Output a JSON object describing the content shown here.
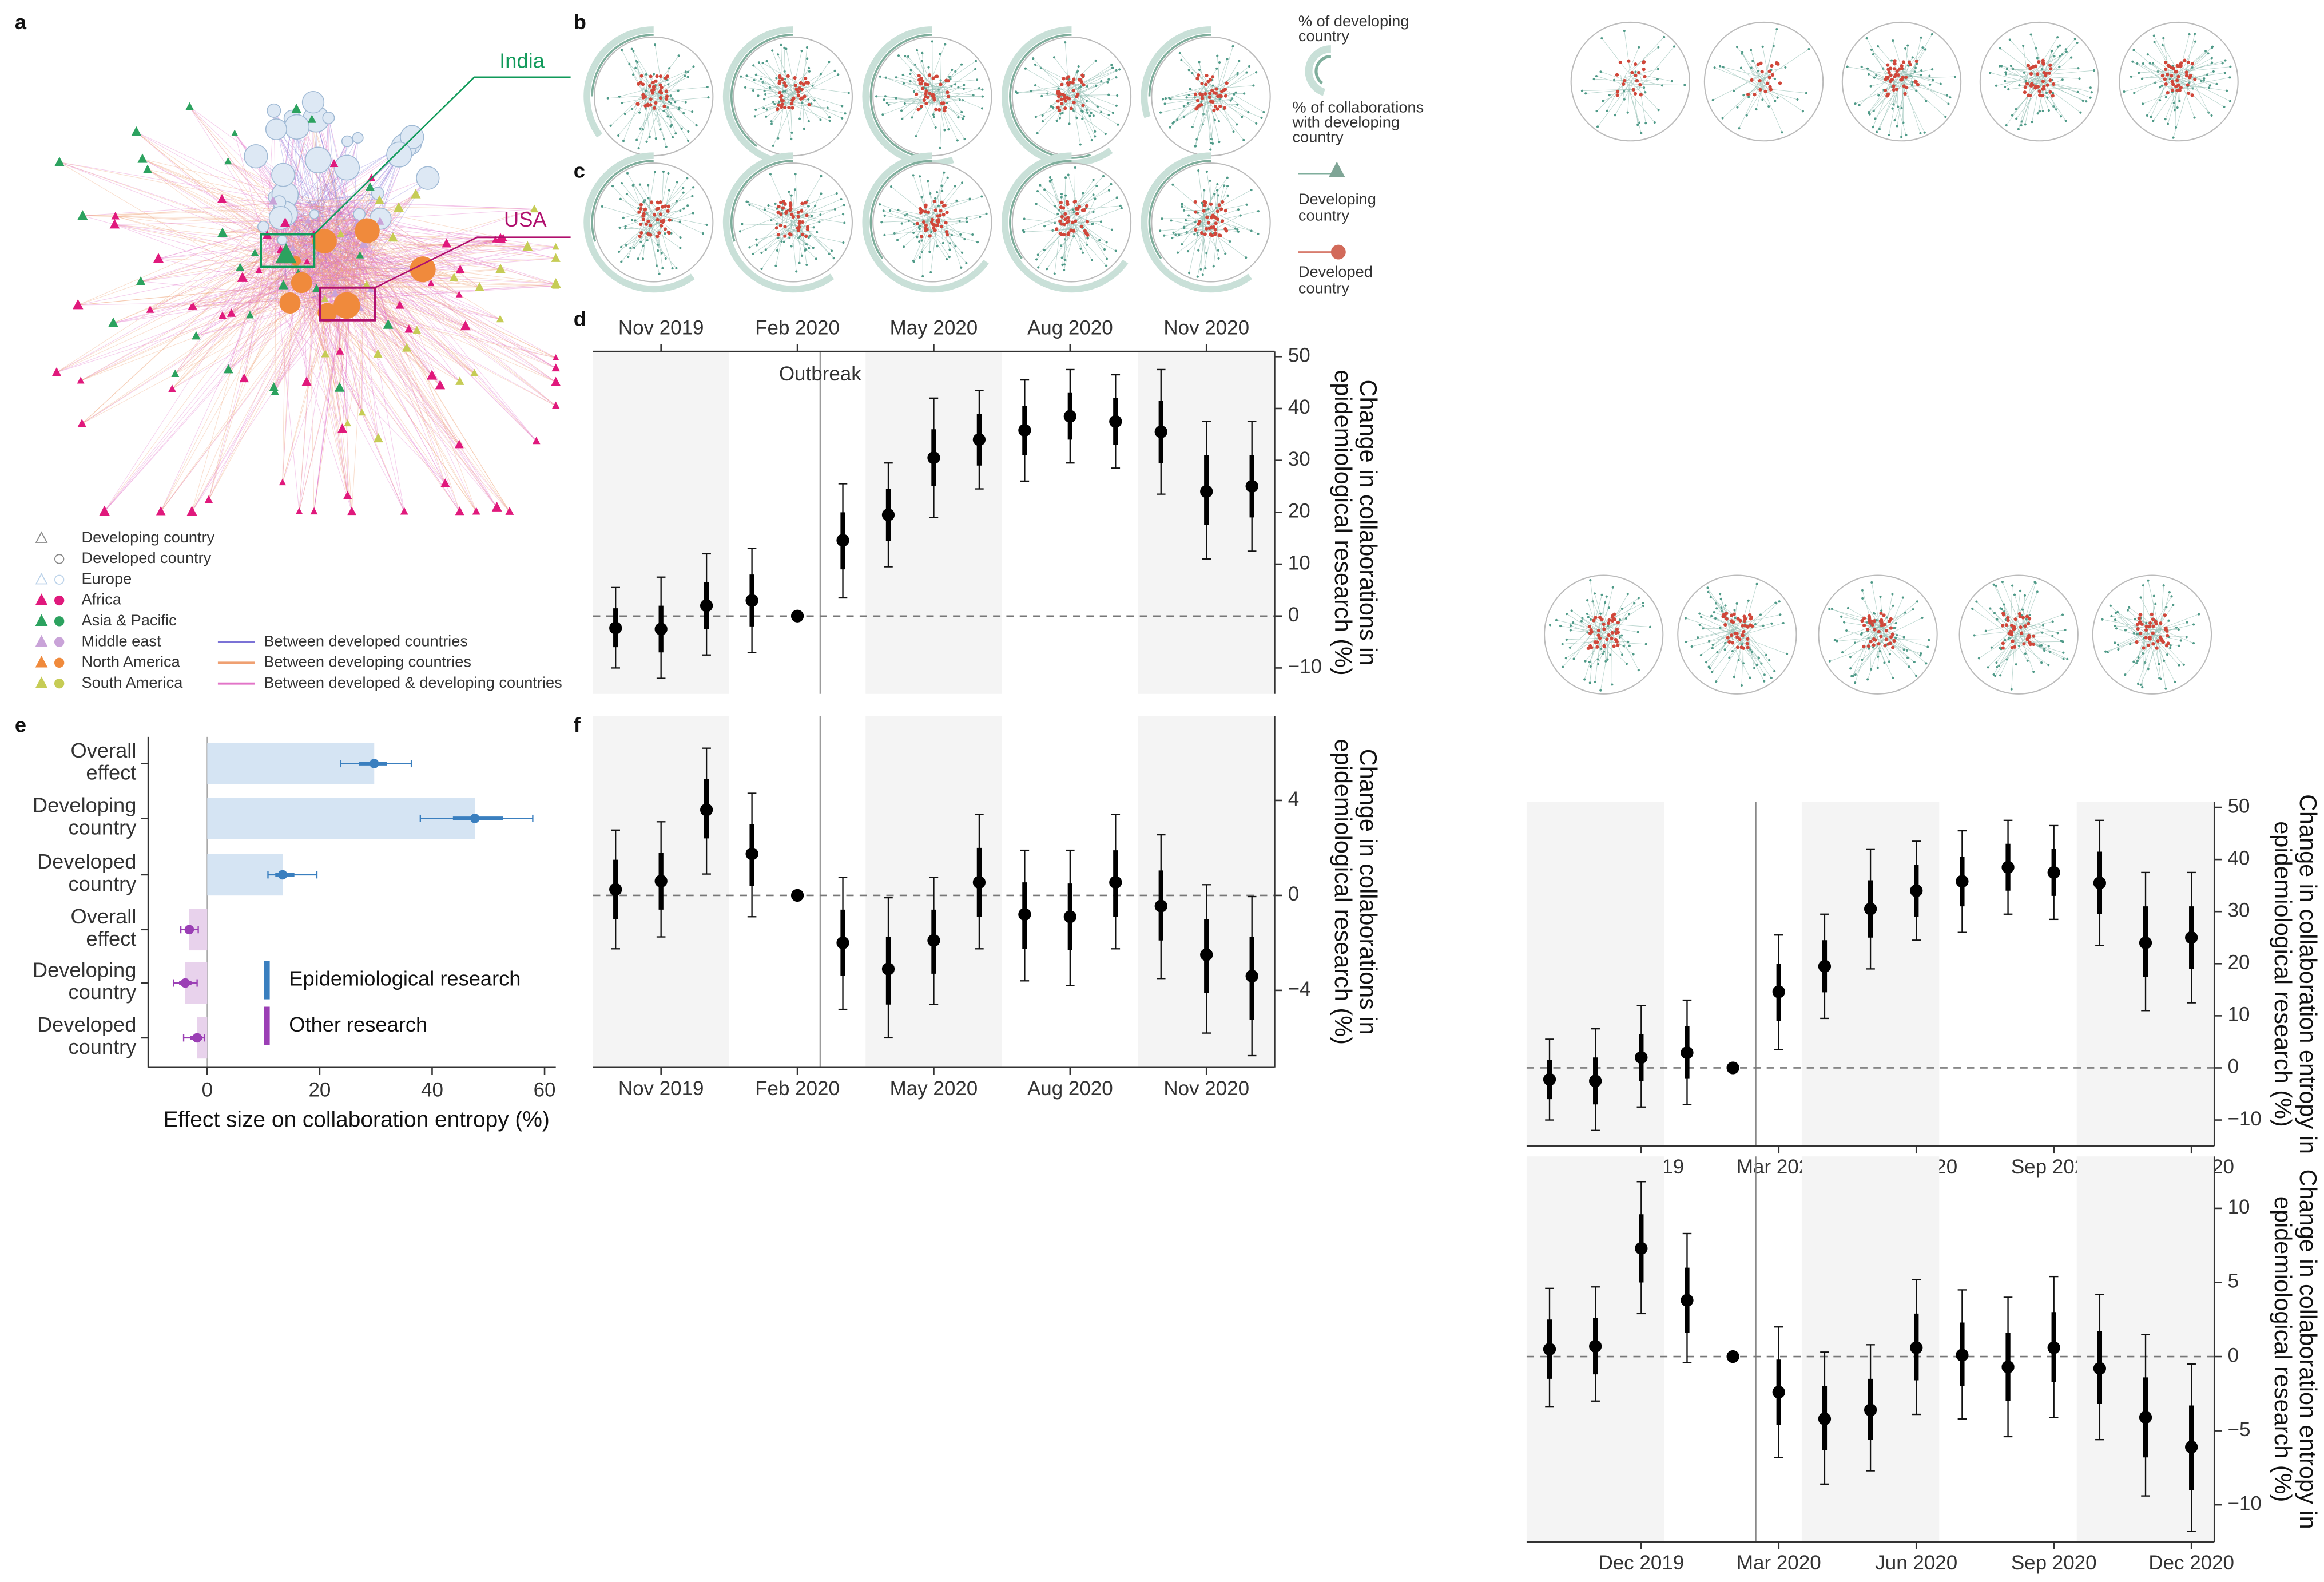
{
  "panel_labels": [
    "a",
    "b",
    "c",
    "d",
    "e",
    "f"
  ],
  "network": {
    "legend": [
      "Developing country",
      "Developed country"
    ],
    "regions": [
      {
        "name": "Europe",
        "color": "#bcd3ea"
      },
      {
        "name": "Africa",
        "color": "#e0197c"
      },
      {
        "name": "Asia & Pacific",
        "color": "#2ca25f"
      },
      {
        "name": "Middle east",
        "color": "#c9a3d8"
      },
      {
        "name": "North America",
        "color": "#f08a3c"
      },
      {
        "name": "South America",
        "color": "#c6cc55"
      }
    ],
    "edges": [
      {
        "name": "Between developed countries",
        "color": "#7b72d6"
      },
      {
        "name": "Between developing countries",
        "color": "#efa072"
      },
      {
        "name": "Between developed & developing countries",
        "color": "#e274c8"
      }
    ],
    "annotations": [
      {
        "text": "India",
        "color": "#109a5a"
      },
      {
        "text": "USA",
        "color": "#b0106e"
      }
    ]
  },
  "ring_legend": {
    "outer": [
      "% of developing",
      "country"
    ],
    "inner": [
      "% of collaborations",
      "with developing",
      "country"
    ],
    "developing": [
      "Developing",
      "country"
    ],
    "developed": [
      "Developed",
      "country"
    ]
  },
  "chart_data": [
    {
      "type": "pointrange",
      "xaxis": "top",
      "ylabel": [
        "Change in collaborations in",
        "epidemiological research (%)"
      ],
      "annotations": [
        "Outbreak"
      ],
      "categories": [
        null,
        "Nov 2019",
        null,
        null,
        "Feb 2020",
        null,
        null,
        "May 2020",
        null,
        null,
        "Aug 2020",
        null,
        null,
        "Nov 2020",
        null
      ],
      "values": [
        -2.3,
        -2.5,
        2,
        3,
        0,
        14.6,
        19.5,
        30.5,
        34,
        35.8,
        38.5,
        37.5,
        35.5,
        24,
        25
      ],
      "ci95": [
        [
          -10,
          5.5
        ],
        [
          -12,
          7.5
        ],
        [
          -7.5,
          12
        ],
        [
          -7,
          13
        ],
        null,
        [
          3.5,
          25.5
        ],
        [
          9.5,
          29.5
        ],
        [
          19,
          42
        ],
        [
          24.5,
          43.5
        ],
        [
          26,
          45.5
        ],
        [
          29.5,
          47.5
        ],
        [
          28.5,
          46.5
        ],
        [
          23.5,
          47.5
        ],
        [
          11,
          37.5
        ],
        [
          12.5,
          37.5
        ]
      ],
      "ci50": [
        [
          -6,
          1.5
        ],
        [
          -7,
          2
        ],
        [
          -2.5,
          6.5
        ],
        [
          -2,
          8
        ],
        null,
        [
          9,
          20
        ],
        [
          14.5,
          24.5
        ],
        [
          25,
          36
        ],
        [
          29,
          39
        ],
        [
          31,
          40.5
        ],
        [
          34,
          43
        ],
        [
          33,
          42
        ],
        [
          29.5,
          41.5
        ],
        [
          17.5,
          31
        ],
        [
          19,
          31
        ]
      ],
      "ylim": [
        -15,
        51
      ],
      "yticks": [
        {
          "value": -10,
          "label": "−10"
        },
        0,
        10,
        20,
        30,
        40,
        50
      ]
    },
    {
      "type": "pointrange",
      "xaxis": "bottom",
      "ylabel": [
        "Change in collaborations in",
        "epidemiological research (%)"
      ],
      "categories": [
        null,
        "Nov 2019",
        null,
        null,
        "Feb 2020",
        null,
        null,
        "May 2020",
        null,
        null,
        "Aug 2020",
        null,
        null,
        "Nov 2020",
        null
      ],
      "values": [
        0.25,
        0.6,
        3.6,
        1.75,
        0,
        -2,
        -3.1,
        -1.9,
        0.55,
        -0.8,
        -0.9,
        0.55,
        -0.45,
        -2.5,
        -3.4
      ],
      "ci95": [
        [
          -2.25,
          2.75
        ],
        [
          -1.75,
          3.1
        ],
        [
          0.9,
          6.2
        ],
        [
          -0.9,
          4.3
        ],
        null,
        [
          -4.8,
          0.75
        ],
        [
          -6,
          -0.1
        ],
        [
          -4.6,
          0.75
        ],
        [
          -2.25,
          3.4
        ],
        [
          -3.6,
          1.9
        ],
        [
          -3.8,
          1.9
        ],
        [
          -2.25,
          3.4
        ],
        [
          -3.5,
          2.55
        ],
        [
          -5.8,
          0.45
        ],
        [
          -6.75,
          -0.05
        ]
      ],
      "ci50": [
        [
          -1,
          1.5
        ],
        [
          -0.6,
          1.8
        ],
        [
          2.4,
          4.9
        ],
        [
          0.4,
          3
        ],
        null,
        [
          -3.4,
          -0.6
        ],
        [
          -4.6,
          -1.75
        ],
        [
          -3.3,
          -0.6
        ],
        [
          -0.9,
          2
        ],
        [
          -2.25,
          0.55
        ],
        [
          -2.3,
          0.5
        ],
        [
          -0.9,
          1.9
        ],
        [
          -1.9,
          1.05
        ],
        [
          -4.1,
          -1
        ],
        [
          -5.25,
          -1.75
        ]
      ],
      "ylim": [
        -7.25,
        7.55
      ],
      "yticks": [
        {
          "value": -4,
          "label": "−4"
        },
        0,
        4
      ]
    },
    {
      "type": "hbar",
      "xlabel": "Effect size on collaboration entropy (%)",
      "categories": [
        "Overall effect",
        "Developing country",
        "Developed country"
      ],
      "series": [
        {
          "name": "Epidemiological research",
          "color": "#3a7fbf",
          "bar_color": "#d5e4f3",
          "values": [
            29.7,
            47.6,
            13.4
          ],
          "ci95": [
            [
              23.7,
              36.3
            ],
            [
              37.9,
              57.9
            ],
            [
              10.8,
              19.5
            ]
          ],
          "ci50": [
            [
              27,
              32
            ],
            [
              43.7,
              52.6
            ],
            [
              12.1,
              15.5
            ]
          ]
        },
        {
          "name": "Other research",
          "color": "#9b3fb5",
          "bar_color": "#e8d2ec",
          "values": [
            -3.2,
            -3.9,
            -1.8
          ],
          "ci95": [
            [
              -4.7,
              -1.6
            ],
            [
              -6,
              -1.8
            ],
            [
              -4.2,
              -0.5
            ]
          ],
          "ci50": [
            [
              -4,
              -2.4
            ],
            [
              -5,
              -2.8
            ],
            [
              -3,
              -0.9
            ]
          ]
        }
      ],
      "xlim": [
        -10.5,
        62
      ],
      "xticks": [
        0,
        20,
        40,
        60
      ]
    },
    {
      "type": "pointrange",
      "xaxis": "bottom",
      "ylabel": [
        "Change in collaboration entropy in",
        "epidemiological research (%)"
      ],
      "categories": [
        null,
        null,
        "Dec 2019",
        null,
        null,
        "Mar 2020",
        null,
        null,
        "Jun 2020",
        null,
        null,
        "Sep 2020",
        null,
        null,
        "Dec 2020"
      ],
      "values": [
        -2.2,
        -2.5,
        2,
        2.9,
        0,
        14.6,
        19.5,
        30.5,
        34,
        35.8,
        38.5,
        37.5,
        35.5,
        24,
        25
      ],
      "ci95": [
        [
          -10,
          5.5
        ],
        [
          -12,
          7.5
        ],
        [
          -7.5,
          12
        ],
        [
          -7,
          13
        ],
        null,
        [
          3.5,
          25.5
        ],
        [
          9.5,
          29.5
        ],
        [
          19,
          42
        ],
        [
          24.5,
          43.5
        ],
        [
          26,
          45.5
        ],
        [
          29.5,
          47.5
        ],
        [
          28.5,
          46.5
        ],
        [
          23.5,
          47.5
        ],
        [
          11,
          37.5
        ],
        [
          12.5,
          37.5
        ]
      ],
      "ci50": [
        [
          -6,
          1.5
        ],
        [
          -7,
          2
        ],
        [
          -2.5,
          6.5
        ],
        [
          -2,
          8
        ],
        null,
        [
          9,
          20
        ],
        [
          14.5,
          24.5
        ],
        [
          25,
          36
        ],
        [
          29,
          39
        ],
        [
          31,
          40.5
        ],
        [
          34,
          43
        ],
        [
          33,
          42
        ],
        [
          29.5,
          41.5
        ],
        [
          17.5,
          31
        ],
        [
          19,
          31
        ]
      ],
      "ylim": [
        -15,
        51
      ],
      "yticks": [
        {
          "value": -10,
          "label": "−10"
        },
        0,
        10,
        20,
        30,
        40,
        50
      ]
    },
    {
      "type": "pointrange",
      "xaxis": "bottom",
      "ylabel": [
        "Change in collaboration entropy in",
        "epidemiological research (%)"
      ],
      "categories": [
        null,
        null,
        "Dec 2019",
        null,
        null,
        "Mar 2020",
        null,
        null,
        "Jun 2020",
        null,
        null,
        "Sep 2020",
        null,
        null,
        "Dec 2020"
      ],
      "values": [
        0.5,
        0.7,
        7.3,
        3.8,
        0,
        -2.4,
        -4.2,
        -3.6,
        0.6,
        0.1,
        -0.7,
        0.6,
        -0.8,
        -4.1,
        -6.1
      ],
      "ci95": [
        [
          -3.4,
          4.6
        ],
        [
          -3,
          4.7
        ],
        [
          2.9,
          11.8
        ],
        [
          -0.4,
          8.3
        ],
        null,
        [
          -6.8,
          2
        ],
        [
          -8.6,
          0.3
        ],
        [
          -7.7,
          0.8
        ],
        [
          -3.9,
          5.2
        ],
        [
          -4.2,
          4.5
        ],
        [
          -5.4,
          4
        ],
        [
          -4.1,
          5.4
        ],
        [
          -5.6,
          4.2
        ],
        [
          -9.4,
          1.5
        ],
        [
          -11.8,
          -0.5
        ]
      ],
      "ci50": [
        [
          -1.5,
          2.5
        ],
        [
          -1.2,
          2.6
        ],
        [
          5,
          9.6
        ],
        [
          1.6,
          6
        ],
        null,
        [
          -4.6,
          -0.2
        ],
        [
          -6.3,
          -2
        ],
        [
          -5.6,
          -1.5
        ],
        [
          -1.6,
          2.9
        ],
        [
          -2,
          2.3
        ],
        [
          -3,
          1.6
        ],
        [
          -1.7,
          3
        ],
        [
          -3.2,
          1.7
        ],
        [
          -6.8,
          -1.4
        ],
        [
          -9,
          -3.3
        ]
      ],
      "ylim": [
        -12.5,
        13.5
      ],
      "yticks": [
        {
          "value": -10,
          "label": "−10"
        },
        {
          "value": -5,
          "label": "−5"
        },
        0,
        5,
        10
      ]
    },
    {
      "type": "ring",
      "color": "#c9e0d8",
      "color2": "#7fae9c",
      "values": [
        35,
        45,
        55,
        60,
        30
      ],
      "values2": [
        25,
        40,
        50,
        55,
        25
      ]
    },
    {
      "type": "ring",
      "color": "#c9e0d8",
      "color2": "#7fae9c",
      "values": [
        60,
        60,
        65,
        65,
        60
      ],
      "values2": [
        30,
        30,
        35,
        35,
        35
      ]
    }
  ]
}
